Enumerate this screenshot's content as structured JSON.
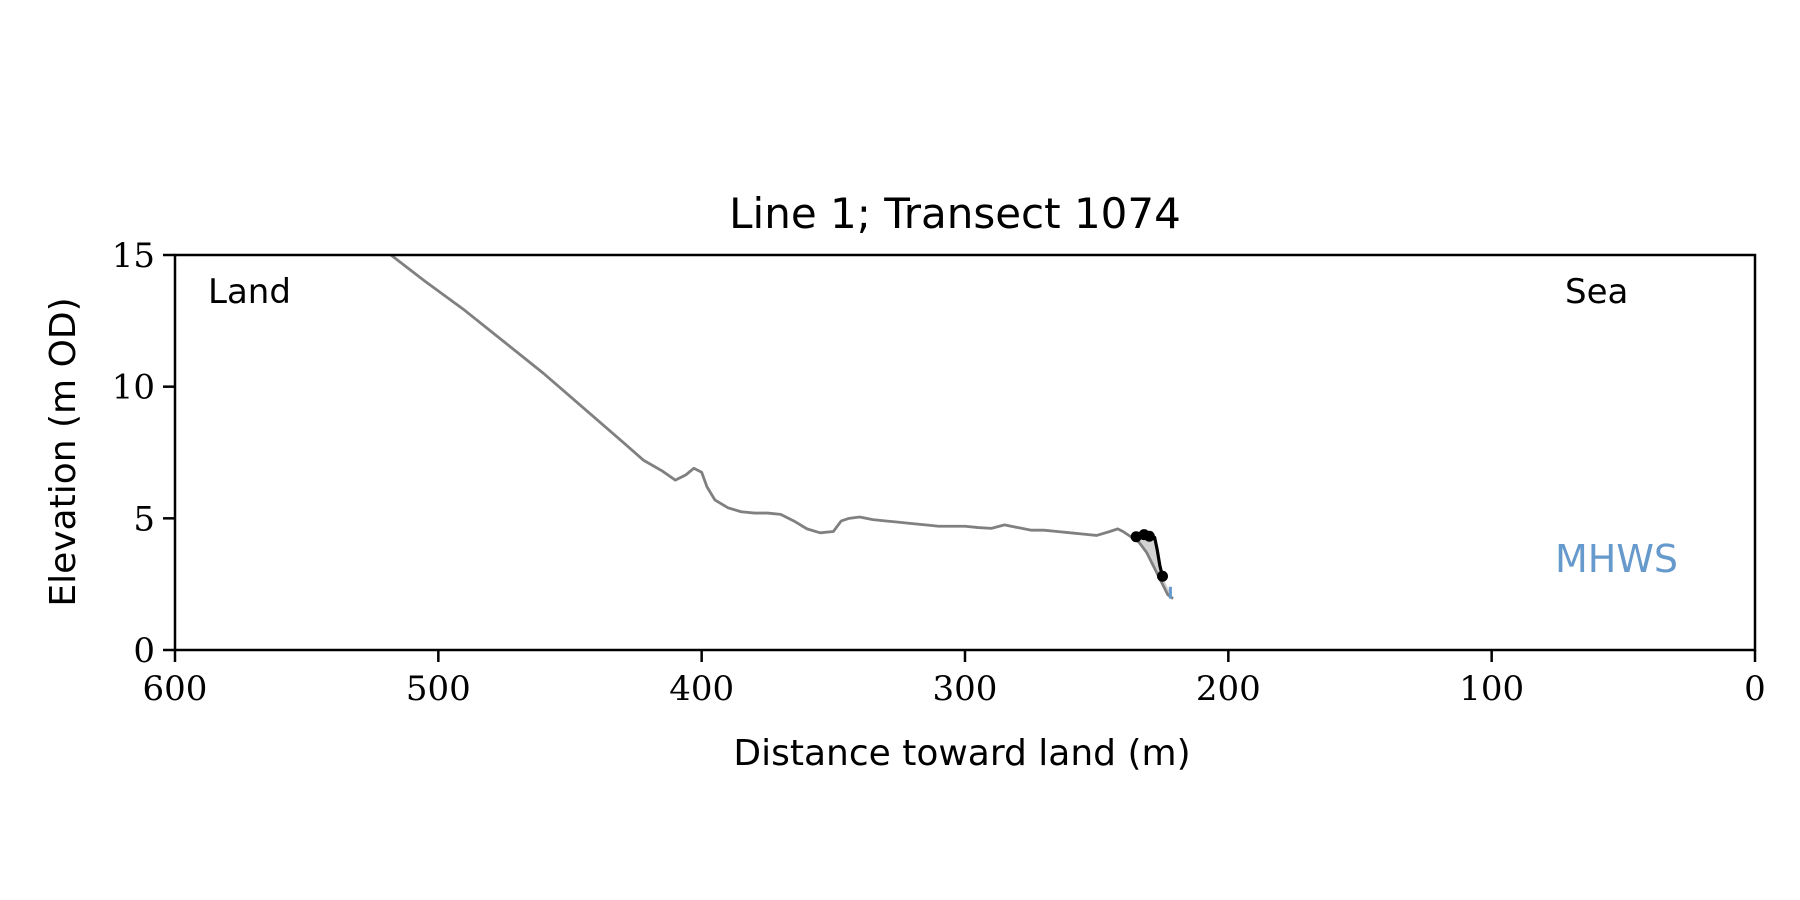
{
  "chart_data": {
    "type": "line",
    "title": "Line 1; Transect 1074",
    "xlabel": "Distance toward land (m)",
    "ylabel": "Elevation (m OD)",
    "xlim": [
      600,
      0
    ],
    "ylim": [
      0,
      15
    ],
    "x_ticks": [
      600,
      500,
      400,
      300,
      200,
      100,
      0
    ],
    "y_ticks": [
      0,
      5,
      10,
      15
    ],
    "grid": false,
    "annotations": {
      "land": "Land",
      "sea": "Sea",
      "mhws": "MHWS"
    },
    "colors": {
      "profile": "#808080",
      "fill": "#c8c8c8",
      "cliff": "#000000",
      "mhws": "#6699cc"
    },
    "series": [
      {
        "x": [
          518,
          505,
          490,
          475,
          460,
          445,
          430,
          422,
          415,
          410,
          406,
          403,
          400,
          398,
          395,
          390,
          385,
          380,
          375,
          370,
          365,
          360,
          355,
          350,
          347,
          344,
          340,
          335,
          330,
          325,
          320,
          315,
          310,
          305,
          300,
          295,
          290,
          285,
          280,
          275,
          270,
          265,
          260,
          255,
          250,
          245,
          242,
          240,
          237,
          234,
          231,
          229,
          227,
          225,
          223,
          221
        ],
        "y": [
          15.0,
          14.0,
          12.9,
          11.7,
          10.5,
          9.2,
          7.9,
          7.2,
          6.8,
          6.45,
          6.65,
          6.9,
          6.75,
          6.2,
          5.7,
          5.4,
          5.25,
          5.2,
          5.2,
          5.15,
          4.9,
          4.6,
          4.45,
          4.5,
          4.9,
          5.0,
          5.05,
          4.95,
          4.9,
          4.85,
          4.8,
          4.75,
          4.7,
          4.7,
          4.7,
          4.65,
          4.62,
          4.75,
          4.65,
          4.55,
          4.55,
          4.5,
          4.45,
          4.4,
          4.35,
          4.5,
          4.6,
          4.5,
          4.3,
          4.1,
          3.7,
          3.3,
          2.9,
          2.5,
          2.1,
          1.95
        ]
      },
      {
        "x": [
          235,
          232,
          230,
          228,
          227,
          226,
          225
        ],
        "y": [
          4.3,
          4.38,
          4.32,
          4.28,
          3.8,
          3.2,
          2.8
        ]
      }
    ],
    "points": [
      {
        "x": 235,
        "y": 4.3
      },
      {
        "x": 232,
        "y": 4.38
      },
      {
        "x": 230,
        "y": 4.32
      },
      {
        "x": 225,
        "y": 2.8
      }
    ],
    "mhws_marker": {
      "x": 222,
      "y_range": [
        1.95,
        2.4
      ]
    }
  }
}
